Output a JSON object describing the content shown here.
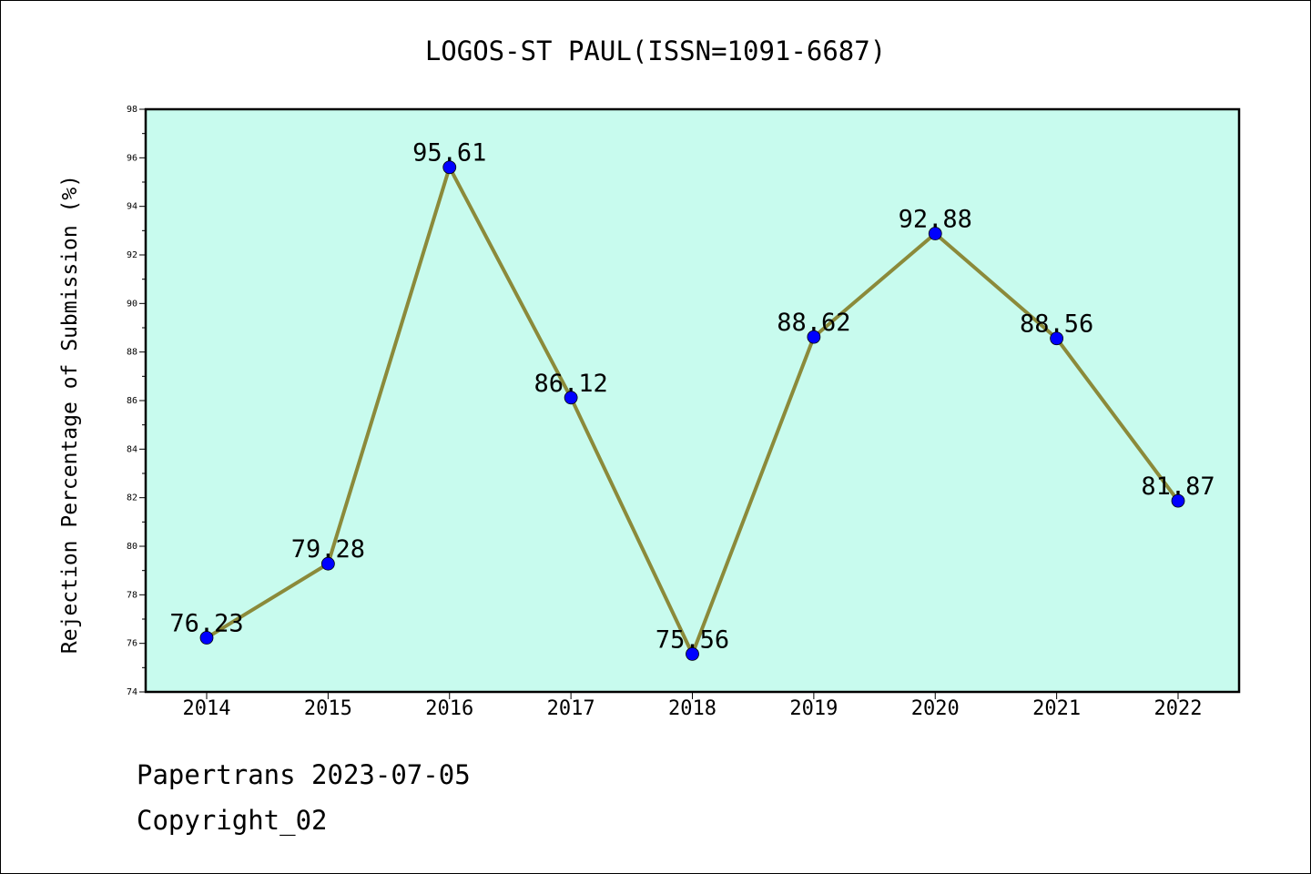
{
  "chart_data": {
    "type": "line",
    "title": "LOGOS-ST PAUL(ISSN=1091-6687)",
    "xlabel": "",
    "ylabel": "Rejection Percentage of Submission (%)",
    "categories": [
      "2014",
      "2015",
      "2016",
      "2017",
      "2018",
      "2019",
      "2020",
      "2021",
      "2022"
    ],
    "values": [
      76.23,
      79.28,
      95.61,
      86.12,
      75.56,
      88.62,
      92.88,
      88.56,
      81.87
    ],
    "data_labels": [
      "76.23",
      "79.28",
      "95.61",
      "86.12",
      "75.56",
      "88.62",
      "92.88",
      "88.56",
      "81.87"
    ],
    "ylim": [
      74,
      98
    ],
    "yticks": [
      "74",
      "76",
      "78",
      "80",
      "82",
      "84",
      "86",
      "88",
      "90",
      "92",
      "94",
      "96",
      "98"
    ],
    "grid": false,
    "legend": "none"
  },
  "colors": {
    "plot_background": "#c8fbee",
    "line": "#8b8a3a",
    "marker": "#0000ff"
  },
  "footer": {
    "line1": "Papertrans 2023-07-05",
    "line2": "Copyright_02"
  }
}
